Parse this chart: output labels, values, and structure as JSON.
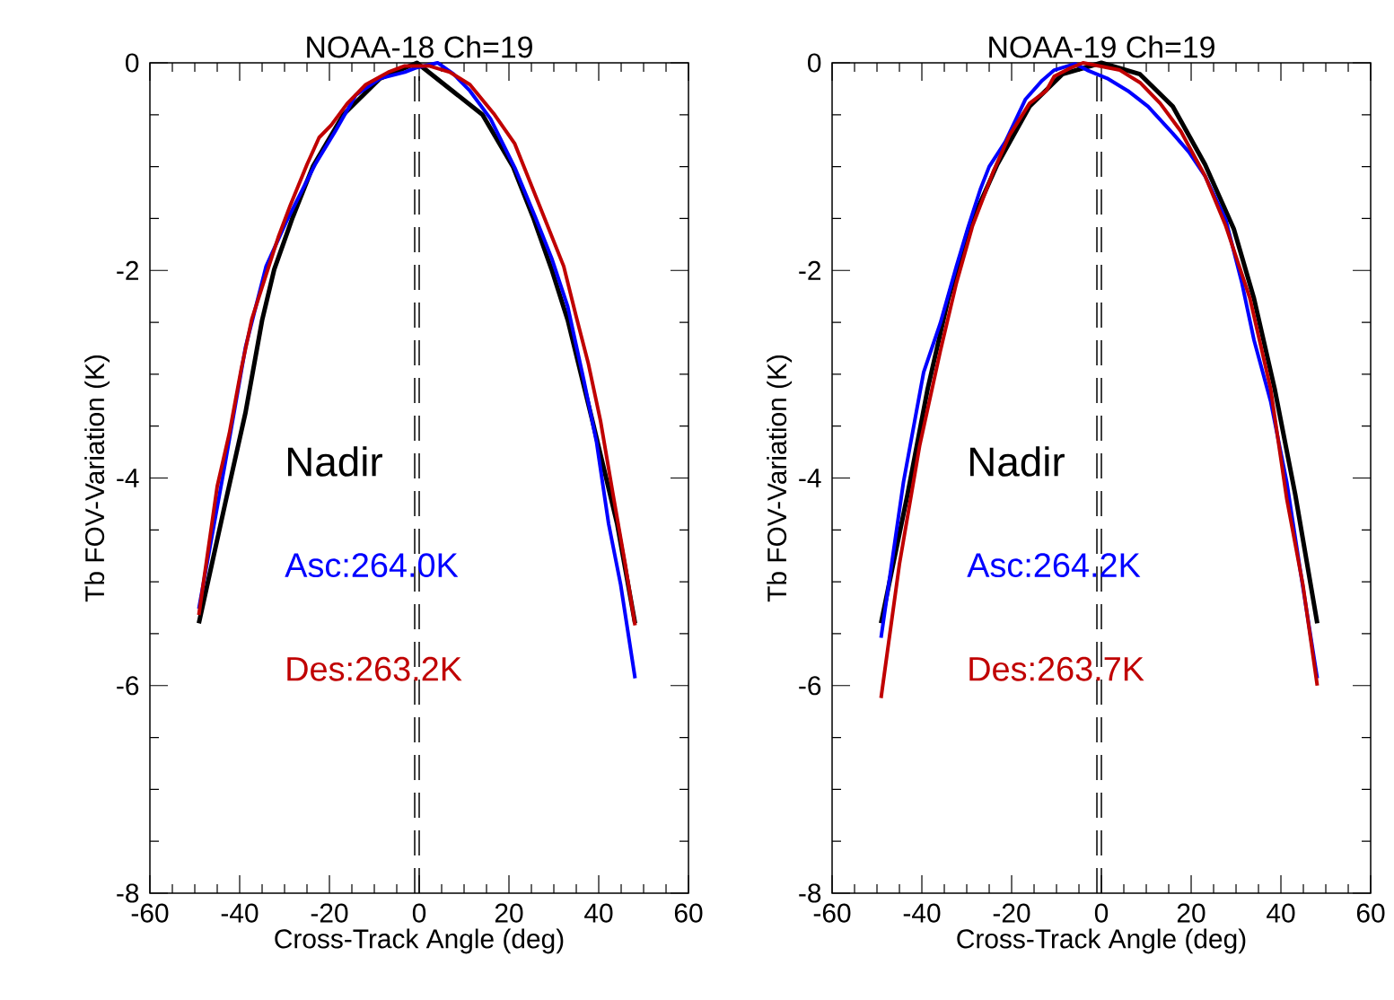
{
  "chart_data": [
    {
      "type": "line",
      "title": "NOAA-18 Ch=19",
      "xlabel": "Cross-Track Angle (deg)",
      "ylabel": "Tb FOV-Variation (K)",
      "xlim": [
        -60,
        60
      ],
      "ylim": [
        -8,
        0
      ],
      "xticks": [
        -60,
        -40,
        -20,
        0,
        20,
        40,
        60
      ],
      "yticks": [
        0,
        -2,
        -4,
        -6,
        -8
      ],
      "annotations": [
        "Nadir"
      ],
      "ref_lines": [
        {
          "axis": "x",
          "value": -1,
          "line_style": "dashed",
          "color": "#000000"
        },
        {
          "axis": "x",
          "value": 0,
          "line_style": "dashed",
          "color": "#000000"
        }
      ],
      "series": [
        {
          "color": "#000000",
          "x": [
            -49.1,
            -43.2,
            -38.7,
            -35.0,
            -32.3,
            -28.2,
            -23.7,
            -16.9,
            -8.7,
            -0.5,
            14.1,
            20.9,
            25.4,
            29.5,
            33.1,
            38.6,
            44.1,
            48.1
          ],
          "values": [
            -5.4,
            -4.24,
            -3.37,
            -2.48,
            -1.99,
            -1.49,
            -1.0,
            -0.5,
            -0.15,
            0.0,
            -0.5,
            -1.0,
            -1.49,
            -1.99,
            -2.48,
            -3.45,
            -4.44,
            -5.4
          ]
        },
        {
          "name": "Asc:264.0K",
          "color": "#0000ff",
          "x": [
            -49.1,
            -43.2,
            -38.7,
            -34.1,
            -29.6,
            -23.2,
            -18.7,
            -14.1,
            -8.7,
            -3.2,
            -0.9,
            4.1,
            7.7,
            11.3,
            15.9,
            21.3,
            25.9,
            29.5,
            33.1,
            36.7,
            39.5,
            42.2,
            44.9,
            48.1
          ],
          "values": [
            -5.26,
            -3.85,
            -2.74,
            -1.96,
            -1.53,
            -0.98,
            -0.66,
            -0.31,
            -0.15,
            -0.09,
            -0.05,
            0.0,
            -0.11,
            -0.27,
            -0.54,
            -1.01,
            -1.49,
            -1.88,
            -2.35,
            -3.06,
            -3.65,
            -4.44,
            -5.03,
            -5.93
          ]
        },
        {
          "name": "Des:263.2K",
          "color": "#c00000",
          "x": [
            -49.1,
            -45.0,
            -42.3,
            -39.6,
            -37.3,
            -34.1,
            -31.4,
            -28.7,
            -25.0,
            -22.3,
            -19.6,
            -16.0,
            -11.9,
            -6.9,
            -3.2,
            2.2,
            6.8,
            11.3,
            16.8,
            21.3,
            24.9,
            28.6,
            32.2,
            34.9,
            37.7,
            40.4,
            43.2,
            45.9,
            48.1
          ],
          "values": [
            -5.32,
            -4.08,
            -3.57,
            -2.94,
            -2.47,
            -2.04,
            -1.68,
            -1.37,
            -0.98,
            -0.72,
            -0.6,
            -0.39,
            -0.21,
            -0.09,
            -0.03,
            -0.03,
            -0.09,
            -0.21,
            -0.5,
            -0.78,
            -1.17,
            -1.57,
            -1.96,
            -2.43,
            -2.9,
            -3.45,
            -4.16,
            -4.83,
            -5.42
          ]
        }
      ]
    },
    {
      "type": "line",
      "title": "NOAA-19 Ch=19",
      "xlabel": "Cross-Track Angle (deg)",
      "ylabel": "Tb FOV-Variation (K)",
      "xlim": [
        -60,
        60
      ],
      "ylim": [
        -8,
        0
      ],
      "xticks": [
        -60,
        -40,
        -20,
        0,
        20,
        40,
        60
      ],
      "yticks": [
        0,
        -2,
        -4,
        -6,
        -8
      ],
      "annotations": [
        "Nadir"
      ],
      "ref_lines": [
        {
          "axis": "x",
          "value": -1,
          "line_style": "dashed",
          "color": "#000000"
        },
        {
          "axis": "x",
          "value": 0,
          "line_style": "dashed",
          "color": "#000000"
        }
      ],
      "series": [
        {
          "color": "#000000",
          "x": [
            -49.1,
            -43.2,
            -38.7,
            -34.1,
            -29.6,
            -23.2,
            -16.0,
            -8.7,
            0,
            8.6,
            15.9,
            23.1,
            29.5,
            34.0,
            38.6,
            43.2,
            48.1
          ],
          "values": [
            -5.4,
            -4.16,
            -3.14,
            -2.27,
            -1.6,
            -0.98,
            -0.42,
            -0.11,
            0.0,
            -0.11,
            -0.42,
            -0.98,
            -1.6,
            -2.27,
            -3.14,
            -4.16,
            -5.4
          ]
        },
        {
          "name": "Asc:264.2K",
          "color": "#0000ff",
          "x": [
            -49.1,
            -44.1,
            -39.6,
            -35.9,
            -32.3,
            -29.6,
            -26.9,
            -25.0,
            -21.4,
            -16.9,
            -13.2,
            -10.5,
            -5.9,
            -3.2,
            1.3,
            5.9,
            10.4,
            15.9,
            19.5,
            23.1,
            27.7,
            31.3,
            34.0,
            37.7,
            41.3,
            44.1,
            48.1
          ],
          "values": [
            -5.54,
            -4.04,
            -2.98,
            -2.51,
            -1.96,
            -1.57,
            -1.21,
            -1.0,
            -0.76,
            -0.35,
            -0.17,
            -0.07,
            -0.01,
            -0.07,
            -0.15,
            -0.27,
            -0.42,
            -0.68,
            -0.86,
            -1.09,
            -1.51,
            -2.12,
            -2.67,
            -3.26,
            -4.04,
            -4.83,
            -5.93
          ]
        },
        {
          "name": "Des:263.7K",
          "color": "#c00000",
          "x": [
            -49.1,
            -45.0,
            -40.5,
            -35.9,
            -32.3,
            -28.7,
            -24.1,
            -20.5,
            -16.0,
            -12.3,
            -10.5,
            -6.9,
            -4.1,
            -0.5,
            4.1,
            8.6,
            13.1,
            17.7,
            23.1,
            27.7,
            33.1,
            37.7,
            41.3,
            44.9,
            48.1
          ],
          "values": [
            -6.12,
            -4.83,
            -3.69,
            -2.78,
            -2.12,
            -1.57,
            -1.05,
            -0.7,
            -0.39,
            -0.27,
            -0.13,
            -0.05,
            0.0,
            -0.03,
            -0.07,
            -0.19,
            -0.39,
            -0.66,
            -1.09,
            -1.57,
            -2.27,
            -3.14,
            -4.2,
            -5.03,
            -6.0
          ]
        }
      ]
    }
  ]
}
